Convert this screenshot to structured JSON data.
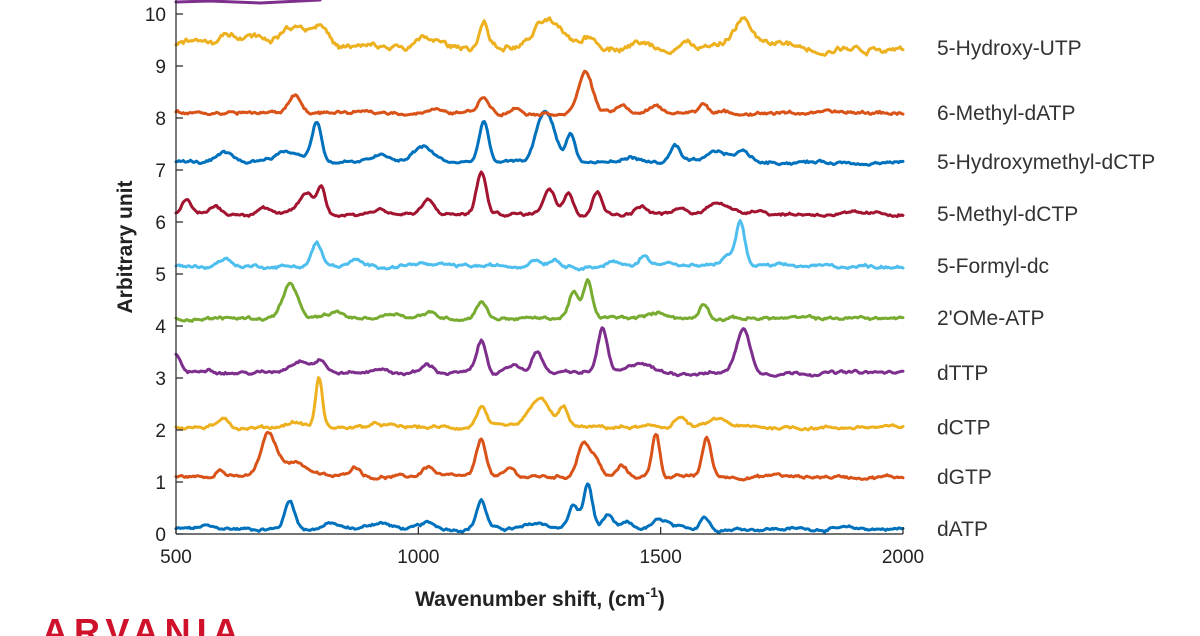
{
  "chart_data": {
    "type": "line",
    "title": "",
    "xlabel": "Wavenumber shift, (cm",
    "xlabel_superscript": "-1",
    "xlabel_suffix": ")",
    "ylabel": "Arbitrary unit",
    "xlim": [
      500,
      2000
    ],
    "ylim": [
      0,
      10
    ],
    "xticks": [
      500,
      1000,
      1500,
      2000
    ],
    "yticks": [
      0,
      1,
      2,
      3,
      4,
      5,
      6,
      7,
      8,
      9,
      10
    ],
    "grid": false,
    "legend": "labels at right end of each trace",
    "series": [
      {
        "name": "dATP",
        "color": "#0072BD",
        "baseline": 0.1,
        "peaks": [
          [
            560,
            0.05,
            10
          ],
          [
            735,
            0.55,
            10
          ],
          [
            820,
            0.1,
            15
          ],
          [
            920,
            0.12,
            20
          ],
          [
            1020,
            0.1,
            15
          ],
          [
            1130,
            0.55,
            10
          ],
          [
            1250,
            0.1,
            20
          ],
          [
            1320,
            0.45,
            10
          ],
          [
            1350,
            0.85,
            9
          ],
          [
            1390,
            0.25,
            10
          ],
          [
            1430,
            0.1,
            10
          ],
          [
            1490,
            0.12,
            10
          ],
          [
            1510,
            0.12,
            10
          ],
          [
            1590,
            0.25,
            9
          ]
        ]
      },
      {
        "name": "dGTP",
        "color": "#D95319",
        "baseline": 1.1,
        "peaks": [
          [
            590,
            0.15,
            10
          ],
          [
            690,
            0.75,
            15
          ],
          [
            740,
            0.3,
            30
          ],
          [
            870,
            0.2,
            12
          ],
          [
            1020,
            0.2,
            12
          ],
          [
            1130,
            0.7,
            10
          ],
          [
            1190,
            0.15,
            10
          ],
          [
            1340,
            0.65,
            12
          ],
          [
            1365,
            0.35,
            10
          ],
          [
            1420,
            0.2,
            10
          ],
          [
            1490,
            0.85,
            8
          ],
          [
            1595,
            0.75,
            9
          ],
          [
            1740,
            0.05,
            10
          ]
        ]
      },
      {
        "name": "dCTP",
        "color": "#EDB120",
        "baseline": 2.05,
        "peaks": [
          [
            600,
            0.2,
            10
          ],
          [
            745,
            0.1,
            20
          ],
          [
            795,
            0.95,
            7
          ],
          [
            920,
            0.05,
            20
          ],
          [
            1130,
            0.4,
            10
          ],
          [
            1250,
            0.55,
            20
          ],
          [
            1300,
            0.35,
            10
          ],
          [
            1540,
            0.2,
            12
          ],
          [
            1620,
            0.15,
            20
          ]
        ]
      },
      {
        "name": "dTTP",
        "color": "#7E2F8E",
        "baseline": 3.1,
        "peaks": [
          [
            500,
            0.35,
            10
          ],
          [
            565,
            0.1,
            15
          ],
          [
            760,
            0.25,
            25
          ],
          [
            800,
            0.2,
            10
          ],
          [
            920,
            0.1,
            12
          ],
          [
            1020,
            0.15,
            12
          ],
          [
            1130,
            0.6,
            10
          ],
          [
            1200,
            0.15,
            12
          ],
          [
            1245,
            0.45,
            10
          ],
          [
            1380,
            0.85,
            10
          ],
          [
            1460,
            0.2,
            20
          ],
          [
            1670,
            0.85,
            14
          ]
        ]
      },
      {
        "name": "2'OMe-ATP",
        "color": "#77AC30",
        "baseline": 4.15,
        "peaks": [
          [
            735,
            0.65,
            15
          ],
          [
            830,
            0.1,
            15
          ],
          [
            950,
            0.1,
            20
          ],
          [
            1020,
            0.1,
            15
          ],
          [
            1130,
            0.35,
            10
          ],
          [
            1320,
            0.5,
            10
          ],
          [
            1350,
            0.7,
            9
          ],
          [
            1500,
            0.1,
            20
          ],
          [
            1590,
            0.3,
            9
          ]
        ]
      },
      {
        "name": "5-Formyl-dc",
        "color": "#4DBEEE",
        "baseline": 5.15,
        "peaks": [
          [
            600,
            0.15,
            12
          ],
          [
            790,
            0.45,
            10
          ],
          [
            870,
            0.1,
            12
          ],
          [
            1000,
            0.05,
            20
          ],
          [
            1240,
            0.15,
            12
          ],
          [
            1280,
            0.15,
            12
          ],
          [
            1400,
            0.08,
            12
          ],
          [
            1465,
            0.2,
            10
          ],
          [
            1510,
            0.1,
            15
          ],
          [
            1640,
            0.2,
            15
          ],
          [
            1665,
            0.8,
            9
          ]
        ]
      },
      {
        "name": "5-Methyl-dCTP",
        "color": "#A2142F",
        "baseline": 6.15,
        "peaks": [
          [
            520,
            0.25,
            10
          ],
          [
            580,
            0.15,
            12
          ],
          [
            680,
            0.15,
            15
          ],
          [
            770,
            0.4,
            15
          ],
          [
            800,
            0.5,
            8
          ],
          [
            920,
            0.1,
            15
          ],
          [
            1020,
            0.25,
            12
          ],
          [
            1130,
            0.8,
            10
          ],
          [
            1270,
            0.5,
            12
          ],
          [
            1310,
            0.45,
            10
          ],
          [
            1370,
            0.45,
            10
          ],
          [
            1460,
            0.15,
            12
          ],
          [
            1540,
            0.1,
            12
          ],
          [
            1620,
            0.25,
            20
          ],
          [
            1700,
            0.1,
            15
          ]
        ]
      },
      {
        "name": "5-Hydroxymethyl-dCTP",
        "color": "#0072BD",
        "baseline": 7.15,
        "peaks": [
          [
            600,
            0.15,
            15
          ],
          [
            730,
            0.2,
            30
          ],
          [
            790,
            0.75,
            10
          ],
          [
            920,
            0.15,
            15
          ],
          [
            1010,
            0.3,
            20
          ],
          [
            1135,
            0.75,
            10
          ],
          [
            1255,
            0.7,
            15
          ],
          [
            1275,
            0.5,
            15
          ],
          [
            1315,
            0.55,
            9
          ],
          [
            1440,
            0.1,
            15
          ],
          [
            1530,
            0.3,
            10
          ],
          [
            1620,
            0.2,
            20
          ],
          [
            1670,
            0.2,
            15
          ]
        ]
      },
      {
        "name": "6-Methyl-dATP",
        "color": "#D95319",
        "baseline": 8.1,
        "peaks": [
          [
            745,
            0.35,
            12
          ],
          [
            1030,
            0.05,
            15
          ],
          [
            1135,
            0.3,
            12
          ],
          [
            1200,
            0.1,
            12
          ],
          [
            1345,
            0.8,
            14
          ],
          [
            1420,
            0.12,
            12
          ],
          [
            1490,
            0.12,
            12
          ],
          [
            1590,
            0.2,
            9
          ]
        ]
      },
      {
        "name": "5-Hydroxy-UTP",
        "color": "#EDB120",
        "baseline": 9.35,
        "peaks": [
          [
            520,
            0.1,
            30
          ],
          [
            640,
            0.3,
            40
          ],
          [
            750,
            0.45,
            30
          ],
          [
            800,
            0.35,
            15
          ],
          [
            1020,
            0.15,
            25
          ],
          [
            1135,
            0.5,
            10
          ],
          [
            1265,
            0.5,
            25
          ],
          [
            1350,
            0.2,
            20
          ],
          [
            1450,
            0.1,
            25
          ],
          [
            1550,
            0.1,
            20
          ],
          [
            1670,
            0.55,
            20
          ],
          [
            1750,
            0.1,
            20
          ]
        ]
      }
    ]
  },
  "top_clipped_series": {
    "color": "#7E2F8E"
  },
  "logo_fragment": {
    "text": "ARVANIA",
    "color": "#D0112B"
  }
}
